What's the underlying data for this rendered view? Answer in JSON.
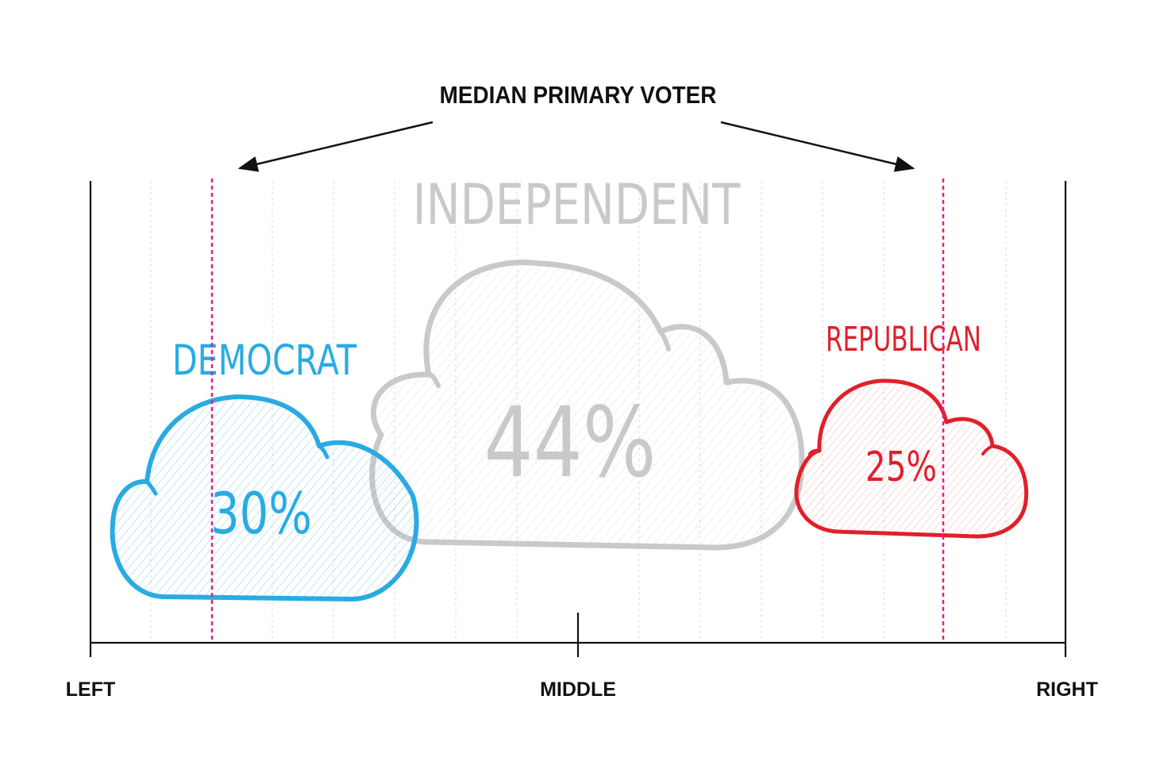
{
  "title": "MEDIAN PRIMARY VOTER",
  "axis": {
    "left_label": "LEFT",
    "middle_label": "MIDDLE",
    "right_label": "RIGHT"
  },
  "groups": {
    "democrat": {
      "label": "DEMOCRAT",
      "percent": "30%",
      "color": "#29abe2"
    },
    "independent": {
      "label": "INDEPENDENT",
      "percent": "44%",
      "color": "#c8c9cb"
    },
    "republican": {
      "label": "REPUBLICAN",
      "percent": "25%",
      "color": "#e0202a"
    }
  },
  "colors": {
    "median_line": "#e0208c",
    "axis": "#111111",
    "gridline": "#d9d9d9"
  }
}
